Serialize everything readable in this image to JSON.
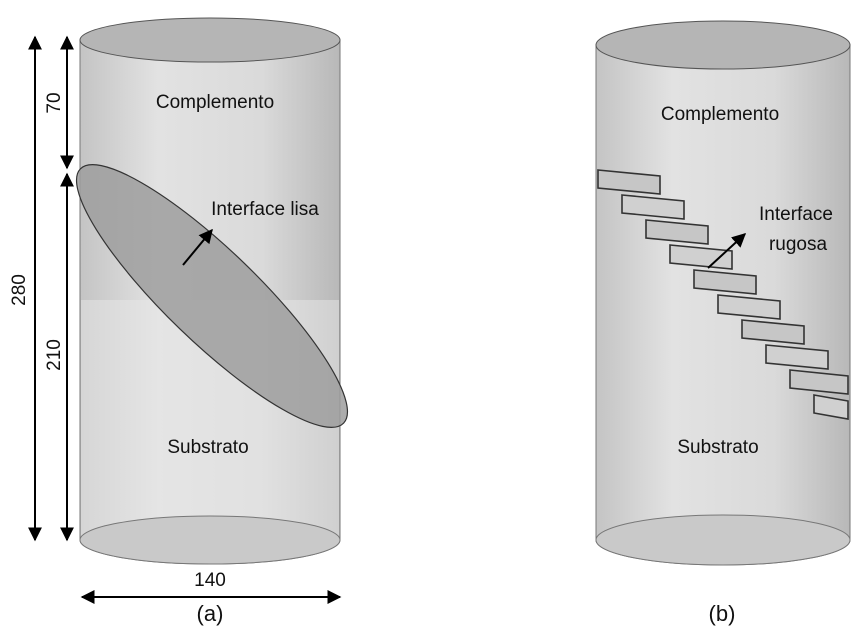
{
  "panels": [
    {
      "label": "(a)",
      "top": "Complemento",
      "interface": "Interface lisa",
      "bottom": "Substrato",
      "dimensions": {
        "total_height": 280,
        "top_height": 70,
        "bottom_height": 210,
        "diameter": 140
      }
    },
    {
      "label": "(b)",
      "top": "Complemento",
      "interface": [
        "Interface",
        "rugosa"
      ],
      "bottom": "Substrato"
    }
  ]
}
